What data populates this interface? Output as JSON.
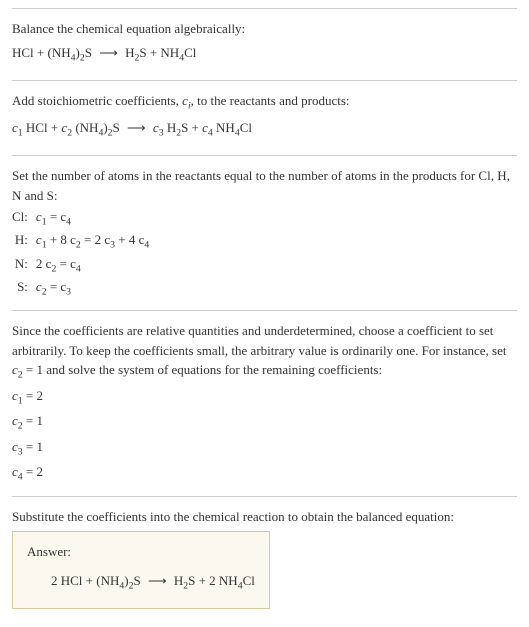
{
  "section1": {
    "intro": "Balance the chemical equation algebraically:",
    "eq_lhs1": "HCl + (NH",
    "eq_lhs2": ")",
    "eq_lhs3": "S",
    "eq_rhs1": "H",
    "eq_rhs2": "S + NH",
    "eq_rhs3": "Cl",
    "sub4a": "4",
    "sub2a": "2",
    "sub2b": "2",
    "sub4b": "4",
    "arrow": "⟶"
  },
  "section2": {
    "intro1": "Add stoichiometric coefficients, ",
    "intro2": ", to the reactants and products:",
    "ci": "c",
    "ci_sub": "i",
    "c1": "c",
    "c1s": "1",
    "c2": "c",
    "c2s": "2",
    "c3": "c",
    "c3s": "3",
    "c4": "c",
    "c4s": "4",
    "t_hcl": " HCl + ",
    "t_nh4_a": " (NH",
    "t_nh4_b": ")",
    "t_nh4_c": "S",
    "sub4a": "4",
    "sub2a": "2",
    "arrow": "⟶",
    "t_h2s_a": " H",
    "t_h2s_b": "S + ",
    "sub2b": "2",
    "t_nh4cl_a": " NH",
    "t_nh4cl_b": "Cl",
    "sub4b": "4"
  },
  "section3": {
    "intro": "Set the number of atoms in the reactants equal to the number of atoms in the products for Cl, H, N and S:",
    "rows": [
      {
        "label": "Cl:",
        "eq_parts": [
          "c",
          "1",
          " = c",
          "4"
        ]
      },
      {
        "label": "H:",
        "eq_parts": [
          "c",
          "1",
          " + 8 c",
          "2",
          " = 2 c",
          "3",
          " + 4 c",
          "4"
        ]
      },
      {
        "label": "N:",
        "eq_parts": [
          "2 c",
          "2",
          " = c",
          "4"
        ]
      },
      {
        "label": "S:",
        "eq_parts": [
          "c",
          "2",
          " = c",
          "3"
        ]
      }
    ]
  },
  "section4": {
    "intro1": "Since the coefficients are relative quantities and underdetermined, choose a coefficient to set arbitrarily. To keep the coefficients small, the arbitrary value is ordinarily one. For instance, set ",
    "intro2": " = 1 and solve the system of equations for the remaining coefficients:",
    "c2": "c",
    "c2s": "2",
    "lines": [
      {
        "c": "c",
        "s": "1",
        "eq": " = 2"
      },
      {
        "c": "c",
        "s": "2",
        "eq": " = 1"
      },
      {
        "c": "c",
        "s": "3",
        "eq": " = 1"
      },
      {
        "c": "c",
        "s": "4",
        "eq": " = 2"
      }
    ]
  },
  "section5": {
    "intro": "Substitute the coefficients into the chemical reaction to obtain the balanced equation:",
    "answer_label": "Answer:",
    "eq_a": "2 HCl + (NH",
    "sub4a": "4",
    "eq_b": ")",
    "sub2a": "2",
    "eq_c": "S",
    "arrow": "⟶",
    "eq_d": "H",
    "sub2b": "2",
    "eq_e": "S + 2 NH",
    "sub4b": "4",
    "eq_f": "Cl"
  },
  "colors": {
    "text": "#333333",
    "border": "#cccccc",
    "answer_border": "#d4c99e",
    "answer_bg": "#faf8ef"
  }
}
